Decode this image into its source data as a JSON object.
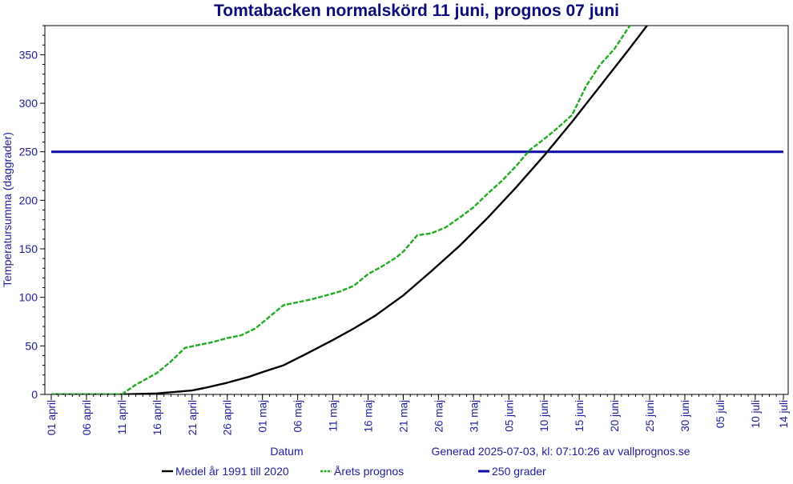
{
  "chart_data": {
    "type": "line",
    "title": "Tomtabacken normalskörd 11 juni, prognos 07 juni",
    "xlabel": "Datum",
    "ylabel": "Temperatursumma (daggrader)",
    "generated_note": "Generad 2025-07-03, kl: 07:10:26 av vallprognos.se",
    "ylim": [
      0,
      380
    ],
    "y_ticks": [
      0,
      50,
      100,
      150,
      200,
      250,
      300,
      350
    ],
    "x_range_days": [
      0,
      104
    ],
    "x_tick_labels": [
      "01 april",
      "06 april",
      "11 april",
      "16 april",
      "21 april",
      "26 april",
      "01 maj",
      "06 maj",
      "11 maj",
      "16 maj",
      "21 maj",
      "26 maj",
      "31 maj",
      "05 juni",
      "10 juni",
      "15 juni",
      "20 juni",
      "25 juni",
      "30 juni",
      "05 juli",
      "10 juli",
      "14 juli"
    ],
    "x_tick_days": [
      0,
      5,
      10,
      15,
      20,
      25,
      30,
      35,
      40,
      45,
      50,
      55,
      60,
      65,
      70,
      75,
      80,
      85,
      90,
      95,
      100,
      104
    ],
    "grid": false,
    "legend_position": "bottom",
    "series": [
      {
        "name": "Medel år 1991 till 2020",
        "color": "#000000",
        "style": "solid",
        "x": [
          0,
          10,
          15,
          20,
          22,
          25,
          28,
          30,
          33,
          36,
          40,
          43,
          46,
          50,
          54,
          58,
          62,
          66,
          70,
          74,
          78,
          82,
          86,
          88
        ],
        "y": [
          0,
          0,
          1,
          4,
          7,
          12,
          18,
          23,
          30,
          41,
          56,
          68,
          81,
          102,
          127,
          153,
          182,
          213,
          246,
          281,
          318,
          355,
          393,
          412
        ]
      },
      {
        "name": "Årets prognos",
        "color": "#22aa22",
        "style": "dashed",
        "x": [
          0,
          10,
          12,
          15,
          17,
          19,
          21,
          23,
          25,
          27,
          29,
          31,
          33,
          35,
          37,
          39,
          41,
          43,
          45,
          47,
          49,
          50,
          52,
          54,
          56,
          58,
          60,
          62,
          64,
          66,
          68,
          70,
          72,
          74,
          76,
          78,
          80,
          82,
          84,
          86
        ],
        "y": [
          0,
          0,
          10,
          22,
          34,
          48,
          51,
          54,
          58,
          61,
          68,
          80,
          92,
          95,
          98,
          102,
          106,
          112,
          124,
          132,
          141,
          147,
          164,
          166,
          172,
          182,
          193,
          207,
          220,
          235,
          252,
          263,
          275,
          288,
          318,
          340,
          356,
          378,
          395,
          412
        ]
      },
      {
        "name": "250 grader",
        "color": "#0a0aa6",
        "style": "solid",
        "x": [
          0,
          104
        ],
        "y": [
          250,
          250
        ]
      }
    ]
  }
}
